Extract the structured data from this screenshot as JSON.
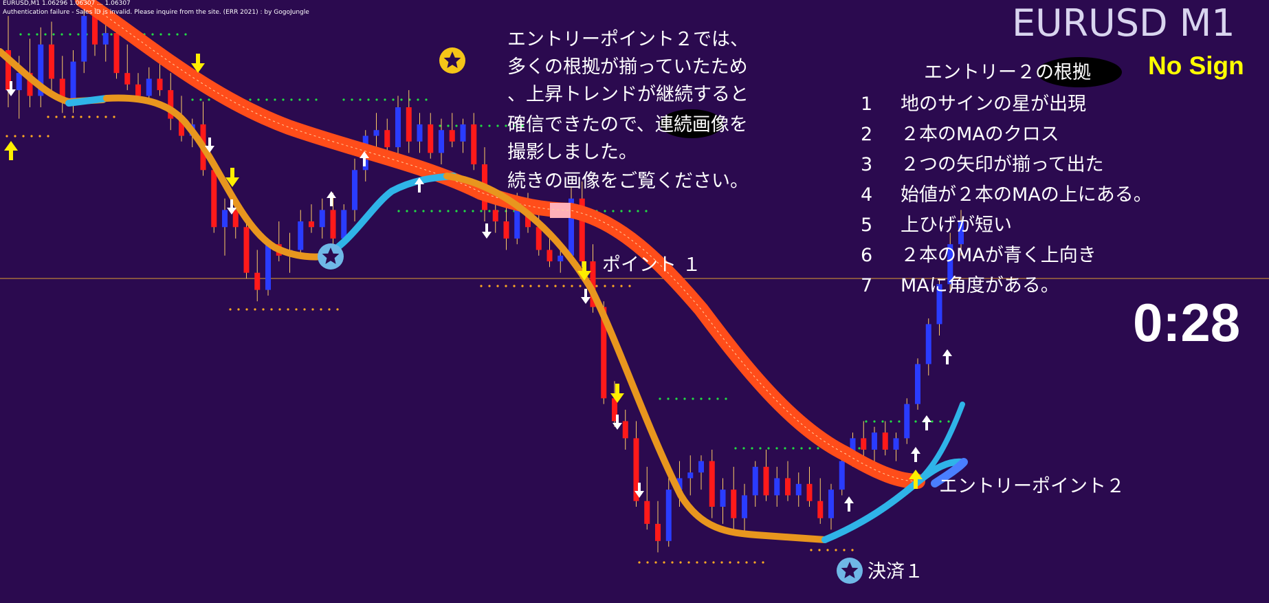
{
  "window": {
    "header_line1": "EURUSD,M1  1.06296 1.06307 ... 1.06307",
    "header_line2": "Authentication failure - Sales ID is invalid. Please inquire from the site. (ERR 2021) : by GogoJungle"
  },
  "symbol_title": "EURUSD M1",
  "signal_status": "No Sign",
  "countdown": "0:28",
  "note": {
    "lines": [
      "エントリーポイント２では、",
      "多くの根拠が揃っていたため",
      "、上昇トレンドが継続すると",
      "確信できたので、連続画像を",
      "撮影しました。",
      "続きの画像をご覧ください。"
    ]
  },
  "reasons": {
    "title": "エントリー２の根拠",
    "items": [
      {
        "num": "1",
        "text": "地のサインの星が出現"
      },
      {
        "num": "2",
        "text": "２本のMAのクロス"
      },
      {
        "num": "3",
        "text": "２つの矢印が揃って出た"
      },
      {
        "num": "4",
        "text": "始値が２本のMAの上にある。"
      },
      {
        "num": "5",
        "text": "上ひげが短い"
      },
      {
        "num": "6",
        "text": "２本のMAが青く上向き"
      },
      {
        "num": "7",
        "text": "MAに角度がある。"
      }
    ]
  },
  "annotations": {
    "point1": "ポイント １",
    "entry_point2": "エントリーポイント２",
    "settlement1": "決済１"
  },
  "colors": {
    "background": "#2b0a4f",
    "bull_candle": "#2a3cff",
    "bear_candle": "#ff1a1a",
    "slow_ma": "#ff4d1a",
    "fast_ma_orange": "#e8961e",
    "fast_ma_blue": "#2fb4e8",
    "arrow_yellow": "#ffee00",
    "arrow_white": "#ffffff",
    "bid_line": "#e0a030",
    "dot_green": "#22dd44",
    "dot_orange": "#ffaa22"
  },
  "chart_data": {
    "type": "candlestick",
    "symbol": "EURUSD",
    "timeframe": "M1",
    "candles": [
      {
        "o": 4.0,
        "h": 4.6,
        "l": 3.0,
        "c": 3.3
      },
      {
        "o": 3.3,
        "h": 3.9,
        "l": 2.8,
        "c": 3.6
      },
      {
        "o": 3.6,
        "h": 4.2,
        "l": 3.0,
        "c": 3.2
      },
      {
        "o": 3.2,
        "h": 4.4,
        "l": 3.0,
        "c": 4.1
      },
      {
        "o": 4.1,
        "h": 4.5,
        "l": 3.3,
        "c": 3.5
      },
      {
        "o": 3.5,
        "h": 3.9,
        "l": 2.9,
        "c": 3.1
      },
      {
        "o": 3.1,
        "h": 4.0,
        "l": 2.9,
        "c": 3.8
      },
      {
        "o": 3.8,
        "h": 4.9,
        "l": 3.6,
        "c": 4.6
      },
      {
        "o": 4.6,
        "h": 4.8,
        "l": 3.9,
        "c": 4.1
      },
      {
        "o": 4.1,
        "h": 4.5,
        "l": 3.8,
        "c": 4.3
      },
      {
        "o": 4.3,
        "h": 4.6,
        "l": 3.5,
        "c": 3.6
      },
      {
        "o": 3.6,
        "h": 4.1,
        "l": 3.3,
        "c": 3.4
      },
      {
        "o": 3.4,
        "h": 3.6,
        "l": 3.1,
        "c": 3.2
      },
      {
        "o": 3.2,
        "h": 3.7,
        "l": 3.1,
        "c": 3.5
      },
      {
        "o": 3.5,
        "h": 3.8,
        "l": 3.2,
        "c": 3.3
      },
      {
        "o": 3.3,
        "h": 3.6,
        "l": 2.6,
        "c": 2.8
      },
      {
        "o": 2.8,
        "h": 3.2,
        "l": 2.4,
        "c": 2.5
      },
      {
        "o": 2.5,
        "h": 2.8,
        "l": 2.3,
        "c": 2.7
      },
      {
        "o": 2.7,
        "h": 3.1,
        "l": 1.8,
        "c": 1.9
      },
      {
        "o": 1.9,
        "h": 2.1,
        "l": 0.8,
        "c": 0.9
      },
      {
        "o": 0.9,
        "h": 1.4,
        "l": 0.4,
        "c": 1.2
      },
      {
        "o": 1.2,
        "h": 1.4,
        "l": 0.7,
        "c": 0.9
      },
      {
        "o": 0.9,
        "h": 1.1,
        "l": 0.0,
        "c": 0.1
      },
      {
        "o": 0.1,
        "h": 0.5,
        "l": -0.4,
        "c": -0.2
      },
      {
        "o": -0.2,
        "h": 0.7,
        "l": -0.3,
        "c": 0.6
      },
      {
        "o": 0.6,
        "h": 1.0,
        "l": 0.3,
        "c": 0.4
      },
      {
        "o": 0.4,
        "h": 0.8,
        "l": 0.1,
        "c": 0.5
      },
      {
        "o": 0.5,
        "h": 1.2,
        "l": 0.4,
        "c": 1.0
      },
      {
        "o": 1.0,
        "h": 1.3,
        "l": 0.8,
        "c": 0.9
      },
      {
        "o": 0.9,
        "h": 1.4,
        "l": 0.7,
        "c": 1.2
      },
      {
        "o": 1.2,
        "h": 1.5,
        "l": 0.6,
        "c": 0.7
      },
      {
        "o": 0.7,
        "h": 1.3,
        "l": 0.6,
        "c": 1.2
      },
      {
        "o": 1.2,
        "h": 2.1,
        "l": 1.0,
        "c": 1.9
      },
      {
        "o": 1.9,
        "h": 2.6,
        "l": 1.7,
        "c": 2.5
      },
      {
        "o": 2.5,
        "h": 2.9,
        "l": 2.3,
        "c": 2.6
      },
      {
        "o": 2.6,
        "h": 2.8,
        "l": 2.2,
        "c": 2.3
      },
      {
        "o": 2.3,
        "h": 3.2,
        "l": 2.1,
        "c": 3.0
      },
      {
        "o": 3.0,
        "h": 3.3,
        "l": 2.2,
        "c": 2.4
      },
      {
        "o": 2.4,
        "h": 2.9,
        "l": 2.2,
        "c": 2.7
      },
      {
        "o": 2.7,
        "h": 2.9,
        "l": 2.1,
        "c": 2.2
      },
      {
        "o": 2.2,
        "h": 2.8,
        "l": 2.0,
        "c": 2.6
      },
      {
        "o": 2.6,
        "h": 2.9,
        "l": 2.3,
        "c": 2.4
      },
      {
        "o": 2.4,
        "h": 2.8,
        "l": 2.2,
        "c": 2.7
      },
      {
        "o": 2.7,
        "h": 2.9,
        "l": 1.9,
        "c": 2.0
      },
      {
        "o": 2.0,
        "h": 2.3,
        "l": 1.0,
        "c": 1.2
      },
      {
        "o": 1.2,
        "h": 1.5,
        "l": 0.8,
        "c": 1.0
      },
      {
        "o": 1.0,
        "h": 1.3,
        "l": 0.5,
        "c": 0.7
      },
      {
        "o": 0.7,
        "h": 1.5,
        "l": 0.6,
        "c": 1.3
      },
      {
        "o": 1.3,
        "h": 1.5,
        "l": 0.8,
        "c": 0.9
      },
      {
        "o": 0.9,
        "h": 1.2,
        "l": 0.4,
        "c": 0.5
      },
      {
        "o": 0.5,
        "h": 0.8,
        "l": 0.2,
        "c": 0.3
      },
      {
        "o": 0.3,
        "h": 0.6,
        "l": 0.1,
        "c": 0.4
      },
      {
        "o": 0.4,
        "h": 1.6,
        "l": 0.3,
        "c": 1.4
      },
      {
        "o": 1.4,
        "h": 1.7,
        "l": 0.2,
        "c": 0.3
      },
      {
        "o": 0.3,
        "h": 0.6,
        "l": -0.6,
        "c": -0.5
      },
      {
        "o": -0.5,
        "h": -0.4,
        "l": -2.2,
        "c": -2.1
      },
      {
        "o": -2.1,
        "h": -1.8,
        "l": -2.6,
        "c": -2.5
      },
      {
        "o": -2.5,
        "h": -2.3,
        "l": -3.0,
        "c": -2.8
      },
      {
        "o": -2.8,
        "h": -2.5,
        "l": -4.0,
        "c": -3.9
      },
      {
        "o": -3.9,
        "h": -3.3,
        "l": -4.4,
        "c": -4.3
      },
      {
        "o": -4.3,
        "h": -3.9,
        "l": -4.8,
        "c": -4.6
      },
      {
        "o": -4.6,
        "h": -3.5,
        "l": -4.7,
        "c": -3.7
      },
      {
        "o": -3.7,
        "h": -3.2,
        "l": -4.0,
        "c": -3.5
      },
      {
        "o": -3.5,
        "h": -3.1,
        "l": -3.8,
        "c": -3.4
      },
      {
        "o": -3.4,
        "h": -3.1,
        "l": -3.7,
        "c": -3.2
      },
      {
        "o": -3.2,
        "h": -3.0,
        "l": -4.2,
        "c": -4.0
      },
      {
        "o": -4.0,
        "h": -3.5,
        "l": -4.3,
        "c": -3.7
      },
      {
        "o": -3.7,
        "h": -3.3,
        "l": -4.4,
        "c": -4.2
      },
      {
        "o": -4.2,
        "h": -3.6,
        "l": -4.5,
        "c": -3.8
      },
      {
        "o": -3.8,
        "h": -3.2,
        "l": -4.0,
        "c": -3.3
      },
      {
        "o": -3.3,
        "h": -3.0,
        "l": -3.9,
        "c": -3.8
      },
      {
        "o": -3.8,
        "h": -3.3,
        "l": -4.0,
        "c": -3.5
      },
      {
        "o": -3.5,
        "h": -3.2,
        "l": -3.9,
        "c": -3.8
      },
      {
        "o": -3.8,
        "h": -3.4,
        "l": -4.0,
        "c": -3.6
      },
      {
        "o": -3.6,
        "h": -3.3,
        "l": -4.0,
        "c": -3.9
      },
      {
        "o": -3.9,
        "h": -3.5,
        "l": -4.3,
        "c": -4.2
      },
      {
        "o": -4.2,
        "h": -3.6,
        "l": -4.4,
        "c": -3.7
      },
      {
        "o": -3.7,
        "h": -3.1,
        "l": -3.8,
        "c": -3.2
      },
      {
        "o": -3.2,
        "h": -2.7,
        "l": -3.3,
        "c": -2.8
      },
      {
        "o": -2.8,
        "h": -2.5,
        "l": -3.2,
        "c": -3.0
      },
      {
        "o": -3.0,
        "h": -2.6,
        "l": -3.3,
        "c": -2.7
      },
      {
        "o": -2.7,
        "h": -2.5,
        "l": -3.1,
        "c": -3.0
      },
      {
        "o": -3.0,
        "h": -2.7,
        "l": -3.2,
        "c": -2.8
      },
      {
        "o": -2.8,
        "h": -2.1,
        "l": -2.9,
        "c": -2.2
      },
      {
        "o": -2.2,
        "h": -1.4,
        "l": -2.3,
        "c": -1.5
      },
      {
        "o": -1.5,
        "h": -0.7,
        "l": -1.7,
        "c": -0.8
      },
      {
        "o": -0.8,
        "h": 0.0,
        "l": -1.0,
        "c": -0.1
      },
      {
        "o": -0.1,
        "h": 0.8,
        "l": -0.2,
        "c": 0.6
      },
      {
        "o": 0.6,
        "h": 1.2,
        "l": 0.4,
        "c": 1.0
      }
    ]
  }
}
